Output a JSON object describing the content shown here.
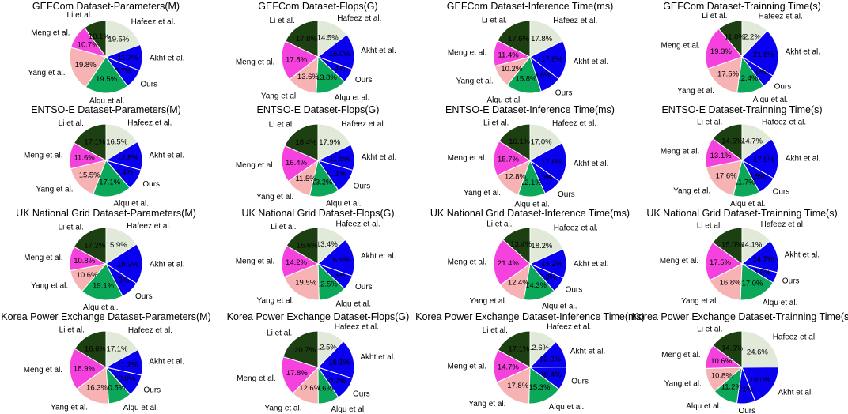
{
  "colors": {
    "Hafeez et al.": "#e1ead9",
    "Akht et al.": "#0a00f0",
    "Ours": "#0a00f0",
    "Alqu et al.": "#0ba85a",
    "Yang et al.": "#f7b3b3",
    "Meng et al.": "#f542df",
    "Li et al.": "#1c4011"
  },
  "chart_data": [
    {
      "type": "pie",
      "title": "GEFCom  Dataset-Parameters(M)",
      "labels": [
        "Hafeez et al.",
        "Akht et al.",
        "Ours",
        "Alqu et al.",
        "Yang et al.",
        "Meng et al.",
        "Li et al."
      ],
      "values": [
        19.5,
        11.7,
        8.7,
        19.5,
        19.8,
        10.7,
        10.1
      ],
      "value_labels": [
        "19.5%",
        "11.7%",
        "8.7%",
        "19.5%",
        "19.8%",
        "10.7%",
        "10.1%"
      ]
    },
    {
      "type": "pie",
      "title": "GEFCom  Dataset-Flops(G)",
      "labels": [
        "Hafeez et al.",
        "Akht et al.",
        "Ours",
        "Alqu et al.",
        "Yang et al.",
        "Meng et al.",
        "Li et al."
      ],
      "values": [
        14.5,
        16.0,
        6.4,
        13.8,
        13.6,
        17.8,
        17.8
      ],
      "value_labels": [
        "14.5%",
        "16.0%",
        "6.4%",
        "13.8%",
        "13.6%",
        "17.8%",
        "17.8%"
      ]
    },
    {
      "type": "pie",
      "title": "GEFCom  Dataset-Inference Time(ms)",
      "labels": [
        "Hafeez et al.",
        "Akht et al.",
        "Ours",
        "Alqu et al.",
        "Yang et al.",
        "Meng et al.",
        "Li et al."
      ],
      "values": [
        17.8,
        17.6,
        9.6,
        15.8,
        10.2,
        11.4,
        17.6
      ],
      "value_labels": [
        "17.8%",
        "17.6%",
        "9.6%",
        "15.8%",
        "10.2%",
        "11.4%",
        "17.6%"
      ]
    },
    {
      "type": "pie",
      "title": "GEFCom  Dataset-Trainning Time(s)",
      "labels": [
        "Hafeez et al.",
        "Akht et al.",
        "Ours",
        "Alqu et al.",
        "Yang et al.",
        "Meng et al.",
        "Li et al."
      ],
      "values": [
        12.2,
        21.6,
        6.0,
        12.4,
        17.5,
        19.3,
        11.0
      ],
      "value_labels": [
        "12.2%",
        "21.6%",
        "6.0%",
        "12.4%",
        "17.5%",
        "19.3%",
        "11.0%"
      ]
    },
    {
      "type": "pie",
      "title": "ENTSO-E Dataset-Parameters(M)",
      "labels": [
        "Hafeez et al.",
        "Akht et al.",
        "Ours",
        "Alqu et al.",
        "Yang et al.",
        "Meng et al.",
        "Li et al."
      ],
      "values": [
        16.5,
        12.8,
        9.4,
        17.1,
        15.5,
        11.6,
        17.1
      ],
      "value_labels": [
        "16.5%",
        "12.8%",
        "9.4%",
        "17.1%",
        "15.5%",
        "11.6%",
        "17.1%"
      ]
    },
    {
      "type": "pie",
      "title": "ENTSO-E Dataset-Flops(G)",
      "labels": [
        "Hafeez et al.",
        "Akht et al.",
        "Ours",
        "Alqu et al.",
        "Yang et al.",
        "Meng et al.",
        "Li et al."
      ],
      "values": [
        17.9,
        11.5,
        11.1,
        13.2,
        11.5,
        16.4,
        18.4
      ],
      "value_labels": [
        "17.9%",
        "11.5%",
        "11.1%",
        "13.2%",
        "11.5%",
        "16.4%",
        "18.4%"
      ]
    },
    {
      "type": "pie",
      "title": "ENTSO-E Dataset-Inference Time(ms)",
      "labels": [
        "Hafeez et al.",
        "Akht et al.",
        "Ours",
        "Alqu et al.",
        "Yang et al.",
        "Meng et al.",
        "Li et al."
      ],
      "values": [
        17.0,
        17.8,
        8.3,
        12.1,
        12.8,
        15.7,
        16.1
      ],
      "value_labels": [
        "17.0%",
        "17.8%",
        "8.3%",
        "12.1%",
        "12.8%",
        "15.7%",
        "16.1%"
      ]
    },
    {
      "type": "pie",
      "title": "ENTSO-E Dataset-Trainning Time(s)",
      "labels": [
        "Hafeez et al.",
        "Akht et al.",
        "Ours",
        "Alqu et al.",
        "Yang et al.",
        "Meng et al.",
        "Li et al."
      ],
      "values": [
        14.7,
        17.9,
        8.5,
        11.7,
        17.6,
        13.1,
        14.5
      ],
      "value_labels": [
        "14.7%",
        "17.9%",
        "8.5%",
        "11.7%",
        "17.6%",
        "13.1%",
        "14.5%"
      ]
    },
    {
      "type": "pie",
      "title": "UK National Grid Dataset-Parameters(M)",
      "labels": [
        "Hafeez et al.",
        "Akht et al.",
        "Ours",
        "Alqu et al.",
        "Yang et al.",
        "Meng et al.",
        "Li et al."
      ],
      "values": [
        15.9,
        18.3,
        8.3,
        19.1,
        10.6,
        10.8,
        17.2
      ],
      "value_labels": [
        "15.9%",
        "18.3%",
        "8.3%",
        "19.1%",
        "10.6%",
        "10.8%",
        "17.2%"
      ]
    },
    {
      "type": "pie",
      "title": "UK National Grid Dataset-Flops(G)",
      "labels": [
        "Hafeez et al.",
        "Akht et al.",
        "Ours",
        "Alqu et al.",
        "Yang et al.",
        "Meng et al.",
        "Li et al."
      ],
      "values": [
        13.4,
        16.9,
        6.6,
        12.5,
        19.5,
        14.2,
        16.6
      ],
      "value_labels": [
        "13.4%",
        "16.9%",
        "6.6%",
        "12.5%",
        "19.5%",
        "14.2%",
        "16.6%"
      ]
    },
    {
      "type": "pie",
      "title": "UK National Grid Dataset-Inference Time(ms)",
      "labels": [
        "Hafeez et al.",
        "Akht et al.",
        "Ours",
        "Alqu et al.",
        "Yang et al.",
        "Meng et al.",
        "Li et al."
      ],
      "values": [
        18.2,
        13.2,
        7.0,
        14.3,
        12.4,
        21.4,
        13.4
      ],
      "value_labels": [
        "18.2%",
        "13.2%",
        "7.0%",
        "14.3%",
        "12.4%",
        "21.4%",
        "13.4%"
      ]
    },
    {
      "type": "pie",
      "title": "UK National Grid Dataset-Trainning Time(s)",
      "labels": [
        "Hafeez et al.",
        "Akht et al.",
        "Ours",
        "Alqu et al.",
        "Yang et al.",
        "Meng et al.",
        "Li et al."
      ],
      "values": [
        14.1,
        14.7,
        4.9,
        17.0,
        16.8,
        17.5,
        15.0
      ],
      "value_labels": [
        "14.1%",
        "14.7%",
        "4.9%",
        "17.0%",
        "16.8%",
        "17.5%",
        "15.0%"
      ]
    },
    {
      "type": "pie",
      "title": "Korea Power Exchange Dataset-Parameters(M)",
      "labels": [
        "Hafeez et al.",
        "Akht et al.",
        "Ours",
        "Alqu et al.",
        "Yang et al.",
        "Meng et al.",
        "Li et al."
      ],
      "values": [
        17.1,
        11.7,
        10.0,
        10.5,
        16.3,
        18.9,
        16.6
      ],
      "value_labels": [
        "17.1%",
        "11.7%",
        "10.0%",
        "10.5%",
        "16.3%",
        "18.9%",
        "16.6%"
      ]
    },
    {
      "type": "pie",
      "title": "Korea Power Exchange Dataset-Flops(G)",
      "labels": [
        "Hafeez et al.",
        "Akht et al.",
        "Ours",
        "Alqu et al.",
        "Yang et al.",
        "Meng et al.",
        "Li et al."
      ],
      "values": [
        12.5,
        18.1,
        10.7,
        9.6,
        12.6,
        17.8,
        20.7
      ],
      "value_labels": [
        "12.5%",
        "18.1%",
        "10.7%",
        "9.6%",
        "12.6%",
        "17.8%",
        "20.7%"
      ]
    },
    {
      "type": "pie",
      "title": "Korea Power Exchange Dataset-Inference Time(ms)",
      "labels": [
        "Hafeez et al.",
        "Akht et al.",
        "Ours",
        "Alqu et al.",
        "Yang et al.",
        "Meng et al.",
        "Li et al."
      ],
      "values": [
        12.6,
        12.3,
        10.4,
        15.3,
        17.8,
        14.7,
        17.1
      ],
      "value_labels": [
        "12.6%",
        "12.3%",
        "10.4%",
        "15.3%",
        "17.8%",
        "14.7%",
        "17.1%"
      ]
    },
    {
      "type": "pie",
      "title": "Korea Power Exchange Dataset-Trainning Time(s)",
      "labels": [
        "Hafeez et al.",
        "Akht et al.",
        "Ours",
        "Alqu et al.",
        "Yang et al.",
        "Meng et al.",
        "Li et al."
      ],
      "values": [
        24.6,
        19.0,
        8.1,
        11.2,
        10.8,
        10.6,
        14.6
      ],
      "value_labels": [
        "24.6%",
        "19.0%",
        "8.1%",
        "11.2%",
        "10.8%",
        "10.6%",
        "14.6%"
      ]
    }
  ]
}
